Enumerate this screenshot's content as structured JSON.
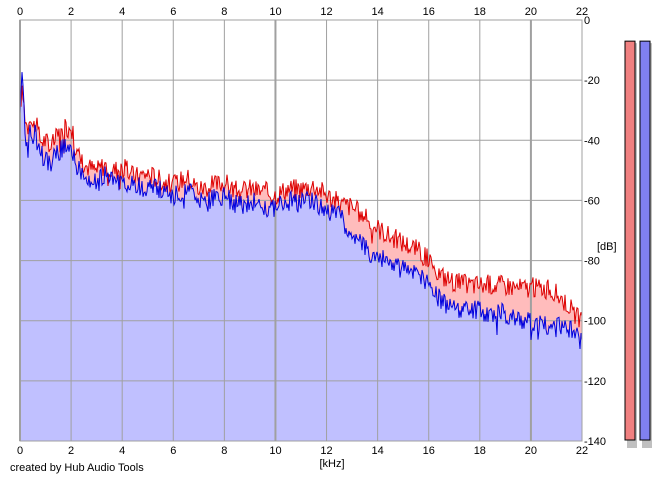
{
  "credit": "created by Hub Audio Tools",
  "chart_data": {
    "type": "area",
    "xlabel": "[kHz]",
    "ylabel": "[dB]",
    "xlim": [
      0,
      22
    ],
    "ylim": [
      -140,
      0
    ],
    "x_ticks": [
      "0",
      "2",
      "4",
      "6",
      "8",
      "10",
      "12",
      "14",
      "16",
      "18",
      "20",
      "22"
    ],
    "y_ticks": [
      "0",
      "-20",
      "-40",
      "-60",
      "-80",
      "-100",
      "-120",
      "-140"
    ],
    "grid": true,
    "x": [
      0.0,
      0.1,
      0.2,
      0.3,
      0.4,
      0.5,
      0.6,
      0.8,
      1.0,
      1.2,
      1.5,
      1.8,
      2.0,
      2.2,
      2.5,
      3.0,
      3.3,
      3.6,
      4.0,
      4.5,
      5.0,
      5.5,
      6.0,
      6.5,
      7.0,
      7.5,
      8.0,
      8.5,
      9.0,
      9.5,
      10.0,
      10.5,
      11.0,
      11.5,
      12.0,
      12.5,
      13.0,
      13.5,
      14.0,
      14.5,
      15.0,
      15.5,
      16.0,
      16.5,
      17.0,
      17.5,
      18.0,
      18.5,
      19.0,
      19.5,
      20.0,
      20.5,
      21.0,
      21.5,
      22.0
    ],
    "series": [
      {
        "color": "#dd0000",
        "fill": "#ffbcbc",
        "values": [
          -27,
          -24,
          -32,
          -36,
          -30,
          -36,
          -34,
          -40,
          -40,
          -42,
          -38,
          -36,
          -35,
          -44,
          -48,
          -50,
          -48,
          -50,
          -49,
          -52,
          -51,
          -53,
          -55,
          -52,
          -56,
          -55,
          -54,
          -57,
          -56,
          -57,
          -58,
          -56,
          -56,
          -55,
          -58,
          -61,
          -62,
          -66,
          -69,
          -72,
          -74,
          -76,
          -80,
          -85,
          -87,
          -88,
          -88,
          -88,
          -88,
          -89,
          -89,
          -89,
          -91,
          -95,
          -101
        ]
      },
      {
        "color": "#0000dd",
        "fill": "#c0c0ff",
        "values": [
          -30,
          -18,
          -36,
          -44,
          -34,
          -40,
          -38,
          -44,
          -46,
          -48,
          -44,
          -42,
          -41,
          -48,
          -52,
          -54,
          -52,
          -54,
          -53,
          -56,
          -55,
          -57,
          -59,
          -56,
          -61,
          -60,
          -58,
          -62,
          -60,
          -62,
          -62,
          -60,
          -61,
          -60,
          -63,
          -65,
          -71,
          -76,
          -79,
          -81,
          -83,
          -84,
          -87,
          -94,
          -95,
          -96,
          -97,
          -97,
          -98,
          -99,
          -100,
          -101,
          -102,
          -103,
          -107
        ]
      }
    ]
  },
  "meters": [
    {
      "color": "#f08080",
      "level": 0.98
    },
    {
      "color": "#8080f0",
      "level": 0.98
    }
  ]
}
